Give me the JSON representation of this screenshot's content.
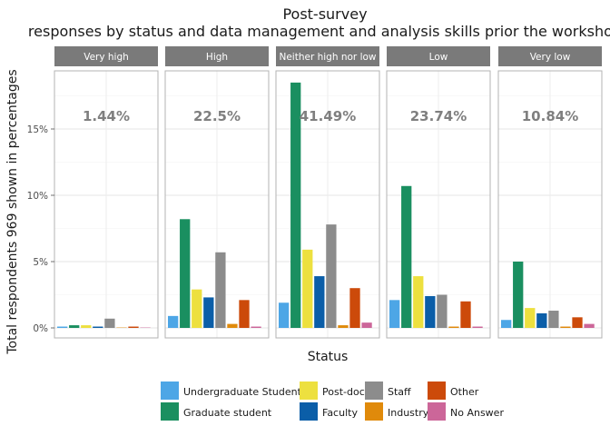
{
  "chart_data": {
    "type": "bar",
    "title_line1": "Post-survey",
    "title_line2": "responses by status and data management and analysis skills prior the workshop",
    "xlabel": "Status",
    "ylabel": "Total respondents 969 shown in percentages",
    "ylim": [
      0,
      19.5
    ],
    "yticks": [
      0,
      5,
      10,
      15
    ],
    "ytick_labels": [
      "0%",
      "5%",
      "10%",
      "15%"
    ],
    "grid": true,
    "legend_position": "bottom",
    "statuses": [
      "Undergraduate Student",
      "Graduate student",
      "Post-doc",
      "Faculty",
      "Staff",
      "Industry",
      "Other",
      "No Answer"
    ],
    "colors": [
      "#4DA6E6",
      "#1A8F60",
      "#EDE03F",
      "#0B5EA8",
      "#8C8C8C",
      "#E08A0B",
      "#CC4A0A",
      "#CC6699"
    ],
    "panels": [
      {
        "name": "Very high",
        "total_label": "1.44%",
        "values": [
          0.1,
          0.2,
          0.2,
          0.1,
          0.7,
          0.0,
          0.1,
          0.0
        ]
      },
      {
        "name": "High",
        "total_label": "22.5%",
        "values": [
          0.9,
          8.2,
          2.9,
          2.3,
          5.7,
          0.3,
          2.1,
          0.1
        ]
      },
      {
        "name": "Neither high nor low",
        "total_label": "41.49%",
        "values": [
          1.9,
          18.5,
          5.9,
          3.9,
          7.8,
          0.2,
          3.0,
          0.4
        ]
      },
      {
        "name": "Low",
        "total_label": "23.74%",
        "values": [
          2.1,
          10.7,
          3.9,
          2.4,
          2.5,
          0.1,
          2.0,
          0.1
        ]
      },
      {
        "name": "Very low",
        "total_label": "10.84%",
        "values": [
          0.6,
          5.0,
          1.5,
          1.1,
          1.3,
          0.1,
          0.8,
          0.3
        ]
      }
    ]
  }
}
